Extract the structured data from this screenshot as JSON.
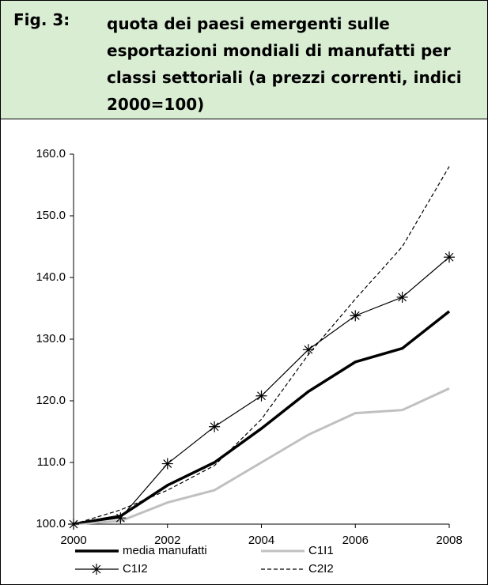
{
  "figure_label": "Fig. 3:",
  "chart_data": {
    "type": "line",
    "title": "quota dei paesi emergenti sulle esportazioni mondiali di manufatti per classi settoriali (a prezzi correnti, indici 2000=100)",
    "x": [
      2000,
      2001,
      2002,
      2003,
      2004,
      2005,
      2006,
      2007,
      2008
    ],
    "xlim": [
      2000,
      2008
    ],
    "xticks": [
      2000,
      2002,
      2004,
      2006,
      2008
    ],
    "ylim": [
      100,
      160
    ],
    "yticks": [
      {
        "value": 100,
        "label": "100.0"
      },
      {
        "value": 110,
        "label": "110.0"
      },
      {
        "value": 120,
        "label": "120.0"
      },
      {
        "value": 130,
        "label": "130.0"
      },
      {
        "value": 140,
        "label": "140.0"
      },
      {
        "value": 150,
        "label": "150.0"
      },
      {
        "value": 160,
        "label": "160.0"
      }
    ],
    "series": [
      {
        "name": "media manufatti",
        "color": "#000000",
        "values": [
          100,
          101.3,
          106.3,
          110,
          115.5,
          121.5,
          126.3,
          128.5,
          134.5
        ]
      },
      {
        "name": "C1I1",
        "color": "#c0c0c0",
        "values": [
          100,
          100.5,
          103.5,
          105.5,
          110,
          114.5,
          118,
          118.5,
          122
        ]
      },
      {
        "name": "C1I2",
        "color": "#000000",
        "values": [
          100,
          101,
          109.8,
          115.8,
          120.8,
          128.3,
          133.8,
          136.8,
          143.3
        ]
      },
      {
        "name": "C2I2",
        "color": "#000000",
        "values": [
          100,
          102.3,
          105.5,
          109.5,
          117,
          127.5,
          136.5,
          145,
          158
        ]
      }
    ]
  }
}
